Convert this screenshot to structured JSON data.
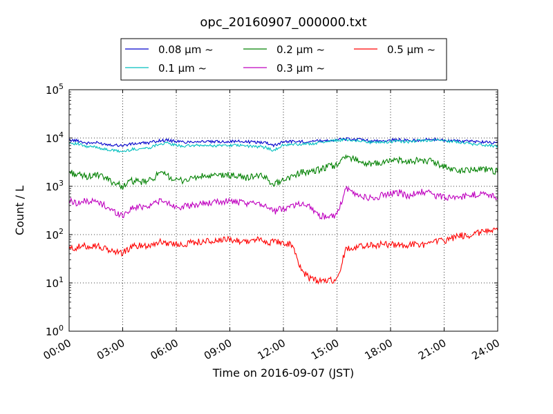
{
  "chart_data": {
    "type": "line",
    "title": "opc_20160907_000000.txt",
    "xlabel": "Time on 2016-09-07 (JST)",
    "ylabel": "Count / L",
    "yscale": "log",
    "ylim": [
      1,
      100000
    ],
    "xlim": [
      "00:00",
      "24:00"
    ],
    "x_ticks": [
      "00:00",
      "03:00",
      "06:00",
      "09:00",
      "12:00",
      "15:00",
      "18:00",
      "21:00",
      "24:00"
    ],
    "y_ticks": [
      {
        "base": "10",
        "exp": "0"
      },
      {
        "base": "10",
        "exp": "1"
      },
      {
        "base": "10",
        "exp": "2"
      },
      {
        "base": "10",
        "exp": "3"
      },
      {
        "base": "10",
        "exp": "4"
      },
      {
        "base": "10",
        "exp": "5"
      }
    ],
    "grid": true,
    "legend": "top, outside plot, 3 columns",
    "x_hours": [
      0,
      0.5,
      1,
      1.5,
      2,
      2.5,
      3,
      3.5,
      4,
      4.5,
      5,
      5.5,
      6,
      6.5,
      7,
      7.5,
      8,
      8.5,
      9,
      9.5,
      10,
      10.5,
      11,
      11.5,
      12,
      12.5,
      13,
      13.5,
      14,
      14.5,
      15,
      15.5,
      16,
      16.5,
      17,
      17.5,
      18,
      18.5,
      19,
      19.5,
      20,
      20.5,
      21,
      21.5,
      22,
      22.5,
      23,
      23.5,
      24
    ],
    "series": [
      {
        "name": "0.08 μm ~",
        "color": "#0000cc",
        "values": [
          9000,
          8800,
          7800,
          8000,
          7500,
          7200,
          7000,
          7500,
          7800,
          8000,
          8800,
          9000,
          8500,
          8200,
          8500,
          8500,
          8300,
          8400,
          8500,
          8500,
          8300,
          8200,
          8100,
          7000,
          8500,
          8500,
          8400,
          8600,
          8700,
          9000,
          9200,
          9500,
          9400,
          9000,
          8500,
          8700,
          9000,
          9200,
          8800,
          9000,
          9200,
          9300,
          9000,
          8800,
          8600,
          8500,
          8400,
          8200,
          8000
        ]
      },
      {
        "name": "0.1 μm ~",
        "color": "#00bfbf",
        "values": [
          8000,
          7500,
          6500,
          6600,
          5800,
          5500,
          5200,
          5800,
          6000,
          6300,
          7500,
          7800,
          7000,
          6800,
          7000,
          7000,
          6900,
          7000,
          7100,
          7000,
          6800,
          6600,
          6400,
          5500,
          7200,
          7300,
          7400,
          7600,
          8000,
          8600,
          9000,
          9200,
          9000,
          8600,
          8000,
          8200,
          8400,
          8600,
          8300,
          8700,
          8900,
          9000,
          8700,
          8500,
          8000,
          7600,
          7200,
          7000,
          6800
        ]
      },
      {
        "name": "0.2 μm ~",
        "color": "#008000",
        "values": [
          2000,
          1700,
          1600,
          1700,
          1500,
          1200,
          1000,
          1300,
          1200,
          1300,
          1800,
          1700,
          1300,
          1350,
          1500,
          1600,
          1600,
          1700,
          1700,
          1600,
          1500,
          1700,
          1500,
          1100,
          1400,
          1600,
          2000,
          1900,
          2200,
          2500,
          2800,
          4000,
          3800,
          3000,
          2800,
          3100,
          3400,
          3500,
          3000,
          3600,
          3400,
          3100,
          2600,
          2200,
          2100,
          2200,
          2400,
          2200,
          2000
        ]
      },
      {
        "name": "0.3 μm ~",
        "color": "#bf00bf",
        "values": [
          500,
          450,
          500,
          480,
          400,
          300,
          250,
          350,
          380,
          400,
          500,
          450,
          380,
          380,
          400,
          450,
          450,
          480,
          500,
          460,
          420,
          480,
          400,
          300,
          350,
          400,
          450,
          380,
          250,
          230,
          250,
          900,
          700,
          600,
          550,
          650,
          700,
          750,
          600,
          800,
          750,
          650,
          600,
          580,
          600,
          650,
          700,
          650,
          600
        ]
      },
      {
        "name": "0.5 μm ~",
        "color": "#ff0000",
        "values": [
          50,
          55,
          58,
          60,
          50,
          45,
          42,
          55,
          60,
          60,
          70,
          68,
          62,
          65,
          70,
          72,
          72,
          75,
          80,
          75,
          72,
          80,
          70,
          70,
          70,
          60,
          18,
          12,
          11,
          11,
          12,
          50,
          55,
          60,
          60,
          62,
          63,
          62,
          60,
          62,
          62,
          70,
          75,
          85,
          95,
          100,
          110,
          120,
          130
        ]
      }
    ]
  }
}
